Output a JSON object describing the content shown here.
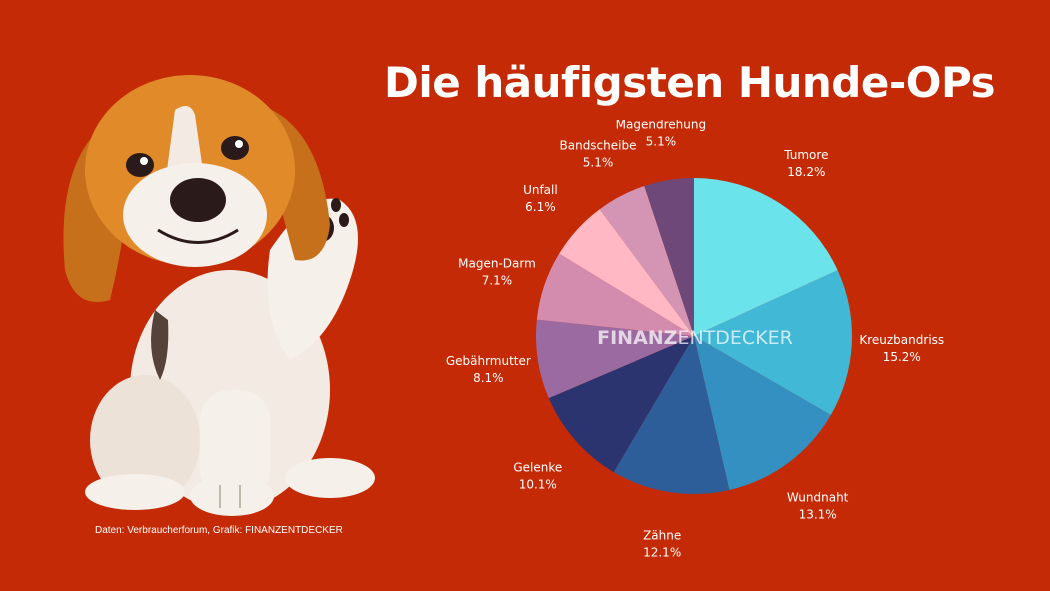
{
  "title": "Die häufigsten Hunde-OPs",
  "source": "Daten: Verbraucherforum, Grafik: FINANZENTDECKER",
  "watermark": {
    "bold": "FINANZ",
    "light": "ENTDECKER"
  },
  "chart_data": {
    "type": "pie",
    "title": "Die häufigsten Hunde-OPs",
    "unit": "%",
    "slices": [
      {
        "label": "Tumore",
        "value": 18.2,
        "display": "18.2%",
        "color": "#6ae3ea"
      },
      {
        "label": "Kreuzbandriss",
        "value": 15.2,
        "display": "15.2%",
        "color": "#41b8d5"
      },
      {
        "label": "Wundnaht",
        "value": 13.1,
        "display": "13.1%",
        "color": "#3390c1"
      },
      {
        "label": "Zähne",
        "value": 12.1,
        "display": "12.1%",
        "color": "#2e5e9a"
      },
      {
        "label": "Gelenke",
        "value": 10.1,
        "display": "10.1%",
        "color": "#2c3470"
      },
      {
        "label": "Gebährmutter",
        "value": 8.1,
        "display": "8.1%",
        "color": "#9b6aa1"
      },
      {
        "label": "Magen-Darm",
        "value": 7.1,
        "display": "7.1%",
        "color": "#d48cae"
      },
      {
        "label": "Unfall",
        "value": 6.1,
        "display": "6.1%",
        "color": "#ffb8c4"
      },
      {
        "label": "Bandscheibe",
        "value": 5.1,
        "display": "5.1%",
        "color": "#d495b4"
      },
      {
        "label": "Magendrehung",
        "value": 5.1,
        "display": "5.1%",
        "color": "#6e4878"
      }
    ]
  }
}
